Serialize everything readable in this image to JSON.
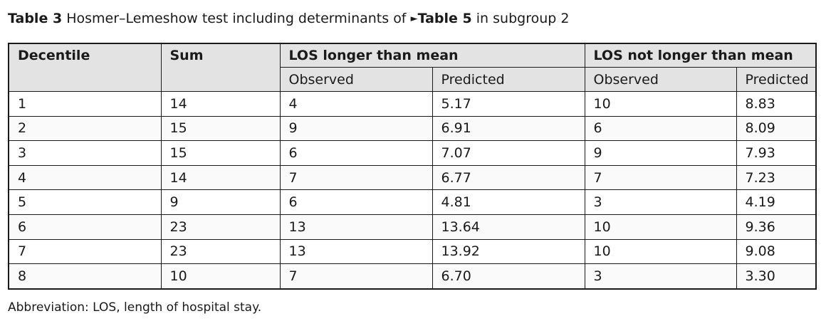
{
  "caption": {
    "label": "Table 3",
    "title_before": "Hosmer–Lemeshow test including determinants of",
    "arrow": "►",
    "ref": "Table 5",
    "title_after": "in subgroup 2"
  },
  "table": {
    "headers": {
      "decentile": "Decentile",
      "sum": "Sum",
      "los_longer": "LOS longer than mean",
      "los_not_longer": "LOS not longer than mean",
      "observed": "Observed",
      "predicted": "Predicted"
    },
    "rows": [
      [
        "1",
        "14",
        "4",
        "5.17",
        "10",
        "8.83"
      ],
      [
        "2",
        "15",
        "9",
        "6.91",
        "6",
        "8.09"
      ],
      [
        "3",
        "15",
        "6",
        "7.07",
        "9",
        "7.93"
      ],
      [
        "4",
        "14",
        "7",
        "6.77",
        "7",
        "7.23"
      ],
      [
        "5",
        "9",
        "6",
        "4.81",
        "3",
        "4.19"
      ],
      [
        "6",
        "23",
        "13",
        "13.64",
        "10",
        "9.36"
      ],
      [
        "7",
        "23",
        "13",
        "13.92",
        "10",
        "9.08"
      ],
      [
        "8",
        "10",
        "7",
        "6.70",
        "3",
        "3.30"
      ]
    ]
  },
  "footnote": "Abbreviation: LOS, length of hospital stay."
}
